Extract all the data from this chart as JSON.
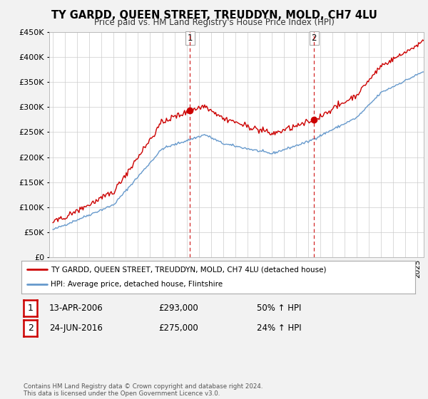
{
  "title": "TY GARDD, QUEEN STREET, TREUDDYN, MOLD, CH7 4LU",
  "subtitle": "Price paid vs. HM Land Registry's House Price Index (HPI)",
  "legend_line1": "TY GARDD, QUEEN STREET, TREUDDYN, MOLD, CH7 4LU (detached house)",
  "legend_line2": "HPI: Average price, detached house, Flintshire",
  "footnote": "Contains HM Land Registry data © Crown copyright and database right 2024.\nThis data is licensed under the Open Government Licence v3.0.",
  "sale1_label": "1",
  "sale1_date": "13-APR-2006",
  "sale1_price": "£293,000",
  "sale1_pct": "50% ↑ HPI",
  "sale2_label": "2",
  "sale2_date": "24-JUN-2016",
  "sale2_price": "£275,000",
  "sale2_pct": "24% ↑ HPI",
  "hpi_color": "#6699cc",
  "price_color": "#cc0000",
  "background_color": "#f2f2f2",
  "plot_bg_color": "#ffffff",
  "grid_color": "#cccccc",
  "vline_color": "#cc0000",
  "marker_color": "#cc0000",
  "sale1_t": 2006.279,
  "sale2_t": 2016.479,
  "sale1_price_val": 293000,
  "sale2_price_val": 275000
}
